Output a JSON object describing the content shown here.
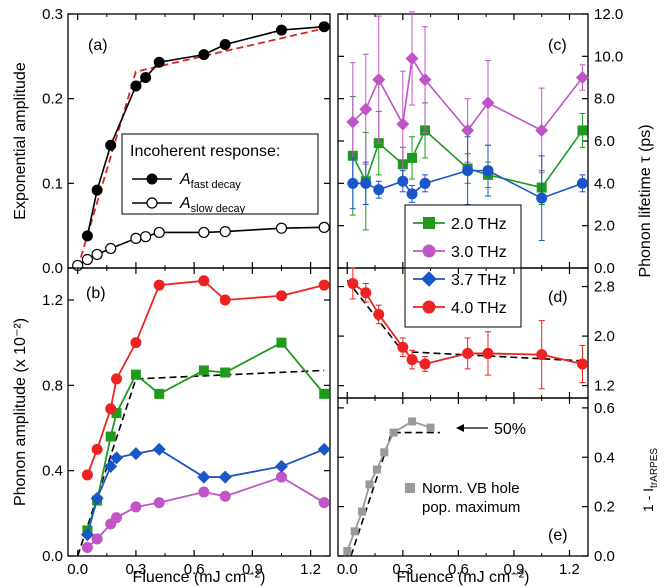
{
  "chart_data": [
    {
      "id": "a",
      "type": "scatter",
      "panel_label": "(a)",
      "ylabel": "Exponential amplitude",
      "ylim": [
        0,
        0.3
      ],
      "yticks": [
        "0.0",
        "0.1",
        "0.2",
        "0.3"
      ],
      "xlim": [
        -0.05,
        1.3
      ],
      "legend_title": "Incoherent response:",
      "legend_position": "center-right",
      "series": [
        {
          "name_main": "A",
          "name_sub": "fast decay",
          "marker": "filled-circle",
          "color": "#000000",
          "x": [
            0.05,
            0.1,
            0.17,
            0.3,
            0.35,
            0.42,
            0.65,
            0.76,
            1.05,
            1.27
          ],
          "y": [
            0.038,
            0.092,
            0.145,
            0.215,
            0.225,
            0.243,
            0.252,
            0.264,
            0.281,
            0.285
          ]
        },
        {
          "name_main": "A",
          "name_sub": "slow decay",
          "marker": "open-circle",
          "color": "#000000",
          "x": [
            0.0,
            0.05,
            0.1,
            0.17,
            0.3,
            0.35,
            0.42,
            0.65,
            0.76,
            1.05,
            1.27
          ],
          "y": [
            0.003,
            0.01,
            0.016,
            0.023,
            0.035,
            0.037,
            0.042,
            0.042,
            0.043,
            0.047,
            0.048
          ]
        }
      ],
      "fit_line": {
        "color": "#dd2222",
        "style": "dashed",
        "x": [
          0.0,
          0.3,
          0.32,
          1.27
        ],
        "y": [
          0.0,
          0.232,
          0.233,
          0.283
        ]
      }
    },
    {
      "id": "b",
      "type": "line",
      "panel_label": "(b)",
      "ylabel": "Phonon amplitude (x 10⁻²)",
      "ylim": [
        0,
        1.35
      ],
      "yticks": [
        "0.0",
        "0.4",
        "0.8",
        "1.2"
      ],
      "xlim": [
        -0.05,
        1.3
      ],
      "xticks": [
        "0.0",
        "0.3",
        "0.6",
        "0.9",
        "1.2"
      ],
      "xlabel": "Fluence (mJ cm⁻²)",
      "x": [
        0.05,
        0.1,
        0.17,
        0.2,
        0.3,
        0.42,
        0.65,
        0.76,
        1.05,
        1.27
      ],
      "series": [
        {
          "name": "2.0 THz",
          "marker": "square",
          "color": "#1f9a1f",
          "y": [
            0.12,
            0.26,
            0.56,
            0.67,
            0.85,
            0.76,
            0.87,
            0.86,
            1.0,
            0.76
          ]
        },
        {
          "name": "3.0 THz",
          "marker": "circle",
          "color": "#c055c8",
          "y": [
            0.04,
            0.08,
            0.15,
            0.18,
            0.23,
            0.25,
            0.3,
            0.28,
            0.37,
            0.25
          ]
        },
        {
          "name": "3.7 THz",
          "marker": "diamond",
          "color": "#1a56c8",
          "y": [
            0.1,
            0.27,
            0.42,
            0.46,
            0.48,
            0.5,
            0.37,
            0.37,
            0.42,
            0.5
          ]
        },
        {
          "name": "4.0 THz",
          "marker": "circle",
          "color": "#ee2222",
          "y": [
            0.38,
            0.5,
            0.69,
            0.83,
            1.0,
            1.27,
            1.29,
            1.2,
            1.22,
            1.27
          ]
        }
      ],
      "fit_line": {
        "color": "#000000",
        "style": "dashed",
        "x": [
          0.0,
          0.3,
          1.27
        ],
        "y": [
          0.0,
          0.83,
          0.87
        ]
      }
    },
    {
      "id": "c",
      "type": "scatter",
      "panel_label": "(c)",
      "ylabel": "Phonon lifetime τ (ps)",
      "ylim": [
        0,
        12
      ],
      "yticks": [
        "0.0",
        "2.0",
        "4.0",
        "6.0",
        "8.0",
        "10.0",
        "12.0"
      ],
      "xlim": [
        -0.05,
        1.3
      ],
      "x": [
        0.03,
        0.1,
        0.17,
        0.3,
        0.35,
        0.42,
        0.65,
        0.76,
        1.05,
        1.27
      ],
      "legend_position": "bottom-left",
      "series": [
        {
          "name": "2.0 THz",
          "marker": "square",
          "color": "#1f9a1f",
          "y": [
            5.3,
            4.1,
            5.9,
            4.9,
            5.2,
            6.5,
            4.7,
            4.4,
            3.8,
            6.5
          ],
          "err": [
            2.8,
            2.3,
            1.5,
            0.8,
            1.0,
            1.3,
            0.7,
            0.6,
            0.8,
            0.8
          ]
        },
        {
          "name": "3.0 THz",
          "marker": "diamond",
          "color": "#c055c8",
          "y": [
            6.9,
            7.5,
            8.9,
            6.8,
            9.9,
            8.9,
            6.5,
            7.8,
            6.5,
            9.0
          ],
          "err": [
            2.8,
            2.6,
            3.0,
            2.5,
            2.2,
            2.5,
            1.5,
            2.0,
            2.0,
            0.6
          ]
        },
        {
          "name": "3.7 THz",
          "marker": "circle",
          "color": "#1a56c8",
          "y": [
            4.0,
            4.0,
            3.7,
            4.1,
            3.5,
            4.0,
            4.6,
            4.6,
            3.3,
            4.0
          ],
          "err": [
            1.2,
            1.0,
            0.4,
            0.5,
            0.4,
            0.4,
            1.6,
            1.2,
            2.0,
            0.4
          ]
        }
      ],
      "legend_entries": [
        "2.0 THz",
        "3.0 THz",
        "3.7 THz",
        "4.0 THz"
      ]
    },
    {
      "id": "d",
      "type": "line",
      "panel_label": "(d)",
      "ylim": [
        1.0,
        3.1
      ],
      "yticks": [
        "1.2",
        "2.0",
        "2.8"
      ],
      "xlim": [
        -0.05,
        1.3
      ],
      "series": [
        {
          "name": "4.0 THz",
          "marker": "circle",
          "color": "#ee2222",
          "x": [
            0.03,
            0.1,
            0.17,
            0.3,
            0.35,
            0.42,
            0.65,
            0.76,
            1.05,
            1.27
          ],
          "y": [
            2.85,
            2.7,
            2.35,
            1.82,
            1.62,
            1.55,
            1.72,
            1.72,
            1.7,
            1.55
          ],
          "err": [
            0.25,
            0.15,
            0.15,
            0.15,
            0.15,
            0.12,
            0.25,
            0.35,
            0.55,
            0.3
          ]
        }
      ],
      "fit_line": {
        "color": "#000000",
        "style": "dashed",
        "x": [
          0.0,
          0.3,
          1.27
        ],
        "y": [
          2.9,
          1.75,
          1.6
        ]
      }
    },
    {
      "id": "e",
      "type": "line",
      "panel_label": "(e)",
      "ylabel_main": "1 - I",
      "ylabel_sub": "trARPES",
      "ylim": [
        0,
        0.64
      ],
      "yticks": [
        "0.0",
        "0.2",
        "0.4",
        "0.6"
      ],
      "xlim": [
        -0.05,
        1.3
      ],
      "xticks": [
        "0.0",
        "0.3",
        "0.6",
        "0.9",
        "1.2"
      ],
      "xlabel": "Fluence (mJ cm⁻²)",
      "annotation": "50%",
      "legend_lines": [
        "Norm. VB hole",
        "pop. maximum"
      ],
      "series": [
        {
          "name": "Norm. VB hole pop. maximum",
          "marker": "square",
          "color": "#999999",
          "x": [
            0.0,
            0.04,
            0.08,
            0.12,
            0.16,
            0.2,
            0.25,
            0.35,
            0.45
          ],
          "y": [
            0.02,
            0.1,
            0.18,
            0.29,
            0.35,
            0.42,
            0.5,
            0.545,
            0.52
          ]
        }
      ],
      "fit_line": {
        "color": "#000000",
        "style": "dashed",
        "x": [
          0.02,
          0.24,
          0.5
        ],
        "y": [
          0.0,
          0.5,
          0.5
        ]
      }
    }
  ]
}
